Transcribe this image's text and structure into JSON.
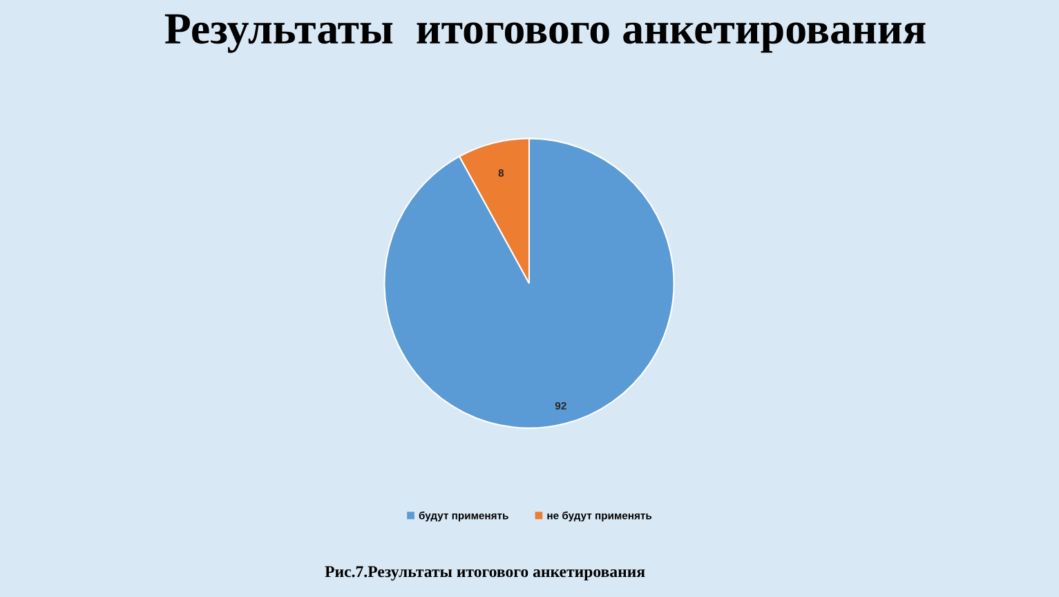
{
  "chart_data": {
    "type": "pie",
    "title": "Результаты  итогового анкетирования",
    "categories": [
      "будут применять",
      "не будут применять"
    ],
    "values": [
      92,
      8
    ],
    "colors": [
      "#5b9bd5",
      "#ed7d31"
    ],
    "data_labels": true,
    "legend": "bottom",
    "annotations": [
      "Рис.7.Результаты итогового анкетирования"
    ]
  }
}
